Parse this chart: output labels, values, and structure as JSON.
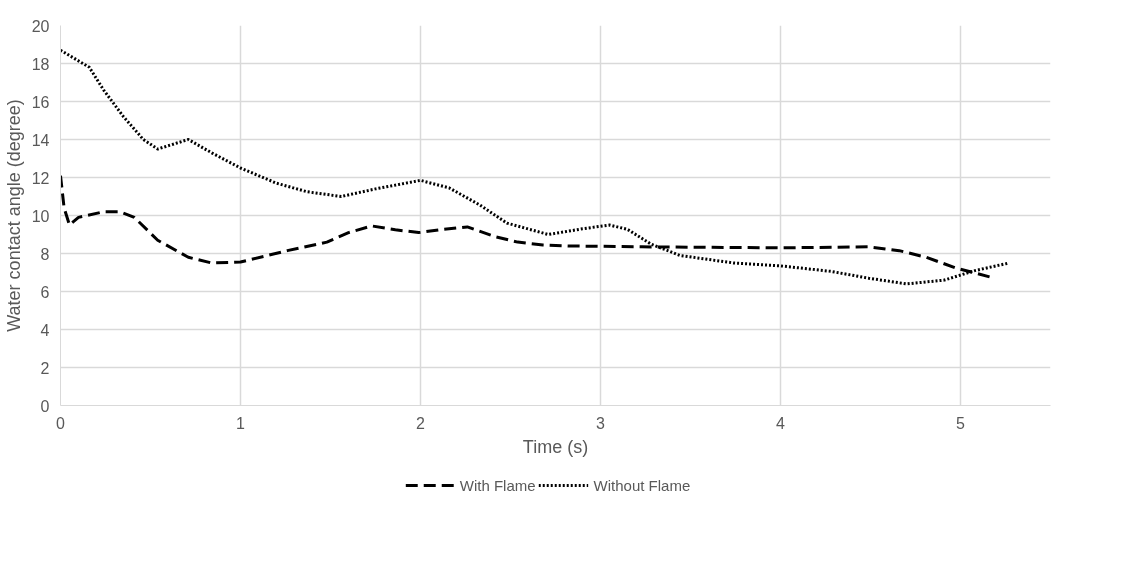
{
  "chart_data": {
    "type": "line",
    "xlabel": "Time (s)",
    "ylabel": "Water contact angle (degree)",
    "xlim": [
      0,
      5.5
    ],
    "xticks": [
      0,
      1,
      2,
      3,
      4,
      5
    ],
    "ylim": [
      0,
      20
    ],
    "yticks": [
      0,
      2,
      4,
      6,
      8,
      10,
      12,
      14,
      16,
      18,
      20
    ],
    "grid": true,
    "legend": "bottom",
    "marker": "none",
    "series": [
      {
        "name": "With Flame",
        "color": "#000000",
        "line_style": "dashed",
        "x": [
          0,
          0.02,
          0.05,
          0.1,
          0.24,
          0.33,
          0.41,
          0.54,
          0.71,
          0.84,
          1.0,
          1.26,
          1.48,
          1.6,
          1.73,
          1.86,
          1.99,
          2.11,
          2.26,
          2.41,
          2.54,
          2.68,
          2.82,
          3.23,
          4.0,
          4.49,
          4.66,
          4.81,
          4.97,
          5.17
        ],
        "values": [
          12.1,
          10.4,
          9.5,
          9.9,
          10.2,
          10.2,
          9.9,
          8.7,
          7.8,
          7.5,
          7.55,
          8.15,
          8.6,
          9.1,
          9.45,
          9.25,
          9.1,
          9.25,
          9.4,
          8.9,
          8.6,
          8.45,
          8.4,
          8.35,
          8.3,
          8.35,
          8.15,
          7.8,
          7.25,
          6.75
        ]
      },
      {
        "name": "Without Flame",
        "color": "#000000",
        "line_style": "dotted",
        "x": [
          0,
          0.16,
          0.24,
          0.35,
          0.46,
          0.54,
          0.71,
          0.84,
          1.0,
          1.2,
          1.37,
          1.56,
          1.75,
          2.0,
          2.16,
          2.33,
          2.48,
          2.71,
          2.9,
          3.05,
          3.15,
          3.28,
          3.44,
          3.74,
          4.0,
          4.28,
          4.49,
          4.7,
          4.91,
          5.08,
          5.27
        ],
        "values": [
          18.7,
          17.8,
          16.6,
          15.2,
          14.0,
          13.5,
          14.0,
          13.3,
          12.5,
          11.7,
          11.25,
          11.0,
          11.4,
          11.85,
          11.45,
          10.55,
          9.6,
          9.0,
          9.3,
          9.5,
          9.27,
          8.5,
          7.9,
          7.5,
          7.35,
          7.06,
          6.7,
          6.4,
          6.6,
          7.1,
          7.5
        ]
      }
    ]
  }
}
